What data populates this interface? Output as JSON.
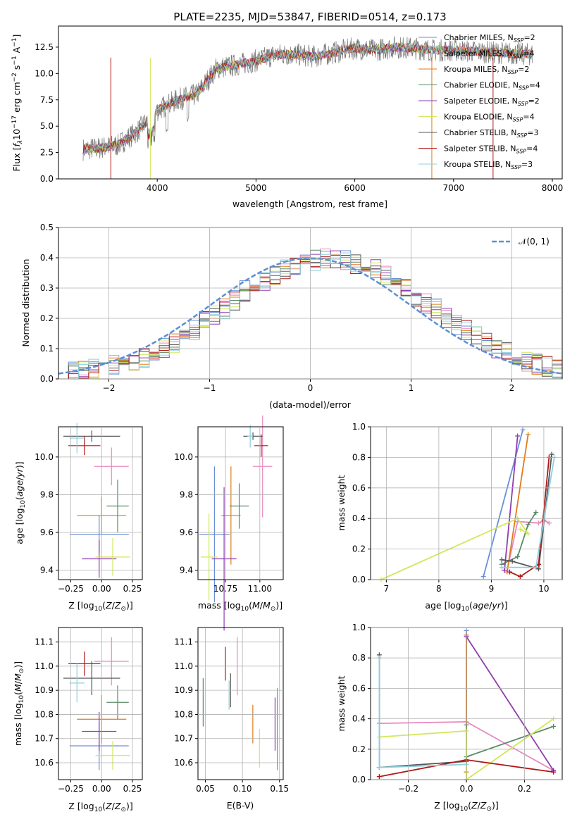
{
  "colors": {
    "Chabrier MILES": "#6a8fd6",
    "Salpeter MILES": "#e889c0",
    "Kroupa MILES": "#e07b1a",
    "Chabrier ELODIE": "#5a8a66",
    "Salpeter ELODIE": "#8e3db0",
    "Kroupa ELODIE": "#d2e85a",
    "Chabrier STELIB": "#555555",
    "Salpeter STELIB": "#b01818",
    "Kroupa STELIB": "#8ed0dc",
    "data": "#777777",
    "normal": "#5b8fd6"
  },
  "chart_data": [
    {
      "type": "line",
      "title": "PLATE=2235, MJD=53847, FIBERID=0514, z=0.173",
      "xlabel": "wavelength [Angstrom, rest frame]",
      "ylabel": "Flux [f_λ 10^-17 erg cm^-2 s^-1 A^-1]",
      "xlim": [
        3000,
        8100
      ],
      "ylim": [
        0,
        14.5
      ],
      "xticks": [
        "4000",
        "5000",
        "6000",
        "7000",
        "8000"
      ],
      "yticks": [
        "0.0",
        "2.5",
        "5.0",
        "7.5",
        "10.0",
        "12.5"
      ],
      "x": [
        3250,
        3400,
        3600,
        3800,
        4000,
        4200,
        4400,
        4600,
        4800,
        5000,
        5200,
        5400,
        5600,
        5800,
        6000,
        6200,
        6400,
        6600,
        6800,
        7000,
        7200,
        7400,
        7600,
        7800
      ],
      "y": [
        2.8,
        2.9,
        3.2,
        4.5,
        6.5,
        7.5,
        8.0,
        10.5,
        10.8,
        11.2,
        11.8,
        11.8,
        11.6,
        12.0,
        12.4,
        12.2,
        12.5,
        12.4,
        12.2,
        12.2,
        12.1,
        12.0,
        11.9,
        11.8
      ],
      "legend": [
        "Chabrier MILES, N_SSP=2",
        "Salpeter MILES, N_SSP=4",
        "Kroupa MILES, N_SSP=2",
        "Chabrier ELODIE, N_SSP=4",
        "Salpeter ELODIE, N_SSP=2",
        "Kroupa ELODIE, N_SSP=4",
        "Chabrier STELIB, N_SSP=3",
        "Salpeter STELIB, N_SSP=4",
        "Kroupa STELIB, N_SSP=3"
      ],
      "legend_placement": "upper right"
    },
    {
      "type": "line",
      "xlabel": "(data-model)/error",
      "ylabel": "Normed distribution",
      "xlim": [
        -2.5,
        2.5
      ],
      "ylim": [
        0,
        0.5
      ],
      "xticks": [
        "−2",
        "−1",
        "0",
        "1",
        "2"
      ],
      "yticks": [
        "0.0",
        "0.1",
        "0.2",
        "0.3",
        "0.4",
        "0.5"
      ],
      "legend": [
        "𝒩(0, 1)"
      ],
      "legend_placement": "upper right",
      "grid": true,
      "bin_width": 0.1,
      "bin_start": -2.5,
      "series_values": [
        0.02,
        0.025,
        0.03,
        0.035,
        0.04,
        0.045,
        0.055,
        0.06,
        0.07,
        0.085,
        0.1,
        0.12,
        0.14,
        0.165,
        0.19,
        0.21,
        0.23,
        0.26,
        0.29,
        0.3,
        0.32,
        0.34,
        0.36,
        0.37,
        0.38,
        0.39,
        0.4,
        0.4,
        0.39,
        0.38,
        0.37,
        0.36,
        0.34,
        0.32,
        0.3,
        0.27,
        0.25,
        0.23,
        0.2,
        0.18,
        0.16,
        0.14,
        0.12,
        0.1,
        0.085,
        0.07,
        0.06,
        0.05,
        0.04,
        0.03
      ]
    },
    {
      "type": "scatter",
      "xlabel": "Z [log10(Z/Z⊙)]",
      "ylabel": "age  [log10(age/yr)]",
      "xlim": [
        -0.35,
        0.33
      ],
      "ylim": [
        9.35,
        10.16
      ],
      "xticks": [
        "−0.25",
        "0.00",
        "0.25"
      ],
      "yticks": [
        "9.4",
        "9.6",
        "9.8",
        "10.0"
      ],
      "points": [
        {
          "x": -0.02,
          "y": 9.59,
          "xerr": 0.24,
          "yerr": 0.1
        },
        {
          "x": 0.08,
          "y": 9.95,
          "xerr": 0.14,
          "yerr": 0.1
        },
        {
          "x": 0.0,
          "y": 9.69,
          "xerr": 0.2,
          "yerr": 0.1
        },
        {
          "x": 0.13,
          "y": 9.74,
          "xerr": 0.09,
          "yerr": 0.14
        },
        {
          "x": -0.02,
          "y": 9.46,
          "xerr": 0.14,
          "yerr": 0.1
        },
        {
          "x": 0.09,
          "y": 9.47,
          "xerr": 0.14,
          "yerr": 0.1
        },
        {
          "x": -0.08,
          "y": 10.11,
          "xerr": 0.23,
          "yerr": 0.03
        },
        {
          "x": -0.14,
          "y": 10.06,
          "xerr": 0.13,
          "yerr": 0.05
        },
        {
          "x": -0.2,
          "y": 10.1,
          "xerr": 0.06,
          "yerr": 0.08
        }
      ]
    },
    {
      "type": "scatter",
      "xlabel": "mass [log10(M/M⊙)]",
      "ylabel": "",
      "xlim": [
        10.55,
        11.17
      ],
      "ylim": [
        9.35,
        10.16
      ],
      "xticks": [
        "10.75",
        "11.00"
      ],
      "yticks": [
        "9.4",
        "9.6",
        "9.8",
        "10.0"
      ],
      "points": [
        {
          "x": 10.67,
          "y": 9.59,
          "xerr": 0.11,
          "yerr": 0.36
        },
        {
          "x": 11.02,
          "y": 9.95,
          "xerr": 0.07,
          "yerr": 0.27
        },
        {
          "x": 10.79,
          "y": 9.69,
          "xerr": 0.07,
          "yerr": 0.26
        },
        {
          "x": 10.85,
          "y": 9.74,
          "xerr": 0.07,
          "yerr": 0.12
        },
        {
          "x": 10.74,
          "y": 9.46,
          "xerr": 0.09,
          "yerr": 0.38
        },
        {
          "x": 10.63,
          "y": 9.47,
          "xerr": 0.06,
          "yerr": 0.23
        },
        {
          "x": 10.95,
          "y": 10.11,
          "xerr": 0.07,
          "yerr": 0.02
        },
        {
          "x": 11.01,
          "y": 10.06,
          "xerr": 0.05,
          "yerr": 0.06
        },
        {
          "x": 10.93,
          "y": 10.11,
          "xerr": 0.02,
          "yerr": 0.06
        }
      ]
    },
    {
      "type": "line",
      "xlabel": "age  [log10(age/yr)]",
      "ylabel": "mass weight",
      "xlim": [
        6.7,
        10.35
      ],
      "ylim": [
        0,
        1
      ],
      "xticks": [
        "7",
        "8",
        "9",
        "10"
      ],
      "yticks": [
        "0.0",
        "0.2",
        "0.4",
        "0.6",
        "0.8",
        "1.0"
      ],
      "grid": true,
      "series": [
        {
          "name": "Chabrier MILES",
          "x": [
            8.85,
            9.6
          ],
          "y": [
            0.02,
            0.98
          ]
        },
        {
          "name": "Salpeter MILES",
          "x": [
            9.3,
            9.5,
            9.9,
            10.0,
            10.1
          ],
          "y": [
            0.06,
            0.38,
            0.37,
            0.39,
            0.37
          ]
        },
        {
          "name": "Kroupa MILES",
          "x": [
            9.3,
            9.7
          ],
          "y": [
            0.05,
            0.95
          ]
        },
        {
          "name": "Chabrier ELODIE",
          "x": [
            9.2,
            9.5,
            9.7,
            9.85
          ],
          "y": [
            0.1,
            0.15,
            0.36,
            0.44
          ]
        },
        {
          "name": "Salpeter ELODIE",
          "x": [
            9.25,
            9.5
          ],
          "y": [
            0.06,
            0.94
          ]
        },
        {
          "name": "Kroupa ELODIE",
          "x": [
            6.9,
            9.5,
            9.7,
            9.55
          ],
          "y": [
            0.0,
            0.4,
            0.3,
            0.33
          ]
        },
        {
          "name": "Chabrier STELIB",
          "x": [
            9.2,
            9.4,
            9.9,
            10.15
          ],
          "y": [
            0.13,
            0.12,
            0.07,
            0.82
          ]
        },
        {
          "name": "Salpeter STELIB",
          "x": [
            9.35,
            9.55,
            9.9,
            10.1
          ],
          "y": [
            0.05,
            0.02,
            0.1,
            0.8
          ]
        },
        {
          "name": "Kroupa STELIB",
          "x": [
            9.2,
            9.85,
            10.2
          ],
          "y": [
            0.08,
            0.08,
            0.8
          ]
        }
      ]
    },
    {
      "type": "scatter",
      "xlabel": "Z [log10(Z/Z⊙)]",
      "ylabel": "mass [log10(M/M⊙)]",
      "xlim": [
        -0.35,
        0.33
      ],
      "ylim": [
        10.53,
        11.16
      ],
      "xticks": [
        "−0.25",
        "0.00",
        "0.25"
      ],
      "yticks": [
        "10.6",
        "10.7",
        "10.8",
        "10.9",
        "11.0",
        "11.1"
      ],
      "points": [
        {
          "x": -0.02,
          "y": 10.67,
          "xerr": 0.24,
          "yerr": 0.1
        },
        {
          "x": 0.08,
          "y": 11.02,
          "xerr": 0.14,
          "yerr": 0.1
        },
        {
          "x": 0.0,
          "y": 10.78,
          "xerr": 0.2,
          "yerr": 0.1
        },
        {
          "x": 0.13,
          "y": 10.85,
          "xerr": 0.09,
          "yerr": 0.07
        },
        {
          "x": -0.02,
          "y": 10.73,
          "xerr": 0.14,
          "yerr": 0.08
        },
        {
          "x": 0.09,
          "y": 10.63,
          "xerr": 0.14,
          "yerr": 0.06
        },
        {
          "x": -0.08,
          "y": 10.95,
          "xerr": 0.23,
          "yerr": 0.07
        },
        {
          "x": -0.14,
          "y": 11.01,
          "xerr": 0.13,
          "yerr": 0.05
        },
        {
          "x": -0.2,
          "y": 10.93,
          "xerr": 0.06,
          "yerr": 0.08
        }
      ]
    },
    {
      "type": "scatter",
      "xlabel": "E(B-V)",
      "ylabel": "",
      "xlim": [
        0.04,
        0.155
      ],
      "ylim": [
        10.53,
        11.16
      ],
      "xticks": [
        "0.05",
        "0.10",
        "0.15"
      ],
      "yticks": [
        "10.6",
        "10.7",
        "10.8",
        "10.9",
        "11.0",
        "11.1"
      ],
      "points": [
        {
          "x": 0.147,
          "y": 10.74,
          "yerr": 0.17
        },
        {
          "x": 0.093,
          "y": 11.0,
          "yerr": 0.12
        },
        {
          "x": 0.114,
          "y": 10.76,
          "yerr": 0.08
        },
        {
          "x": 0.047,
          "y": 10.85,
          "yerr": 0.1
        },
        {
          "x": 0.144,
          "y": 10.76,
          "yerr": 0.11
        },
        {
          "x": 0.123,
          "y": 10.66,
          "yerr": 0.08
        },
        {
          "x": 0.084,
          "y": 10.9,
          "yerr": 0.07
        },
        {
          "x": 0.077,
          "y": 11.01,
          "yerr": 0.07
        },
        {
          "x": 0.082,
          "y": 10.88,
          "yerr": 0.06
        }
      ]
    },
    {
      "type": "line",
      "xlabel": "Z [log10(Z/Z⊙)]",
      "ylabel": "mass weight",
      "xlim": [
        -0.33,
        0.33
      ],
      "ylim": [
        0,
        1
      ],
      "xticks": [
        "−0.2",
        "0.0",
        "0.2"
      ],
      "yticks": [
        "0.0",
        "0.2",
        "0.4",
        "0.6",
        "0.8",
        "1.0"
      ],
      "grid": true,
      "series": [
        {
          "name": "Chabrier MILES",
          "x": [
            0.0,
            0.0
          ],
          "y": [
            0.0,
            0.98
          ]
        },
        {
          "name": "Salpeter MILES",
          "x": [
            -0.3,
            0.0,
            0.3
          ],
          "y": [
            0.37,
            0.38,
            0.06
          ]
        },
        {
          "name": "Kroupa MILES",
          "x": [
            0.0,
            0.0
          ],
          "y": [
            0.05,
            0.95
          ]
        },
        {
          "name": "Chabrier ELODIE",
          "x": [
            0.0,
            0.0,
            0.3
          ],
          "y": [
            0.36,
            0.15,
            0.35
          ]
        },
        {
          "name": "Salpeter ELODIE",
          "x": [
            0.0,
            0.3
          ],
          "y": [
            0.94,
            0.06
          ]
        },
        {
          "name": "Kroupa ELODIE",
          "x": [
            -0.3,
            0.0,
            0.0,
            0.3
          ],
          "y": [
            0.28,
            0.32,
            0.0,
            0.4
          ]
        },
        {
          "name": "Chabrier STELIB",
          "x": [
            -0.3,
            -0.3,
            0.0
          ],
          "y": [
            0.82,
            0.08,
            0.12
          ]
        },
        {
          "name": "Salpeter STELIB",
          "x": [
            -0.3,
            0.0,
            0.3
          ],
          "y": [
            0.02,
            0.13,
            0.05
          ]
        },
        {
          "name": "Kroupa STELIB",
          "x": [
            -0.3,
            -0.3,
            0.0
          ],
          "y": [
            0.8,
            0.08,
            0.1
          ]
        }
      ]
    }
  ]
}
